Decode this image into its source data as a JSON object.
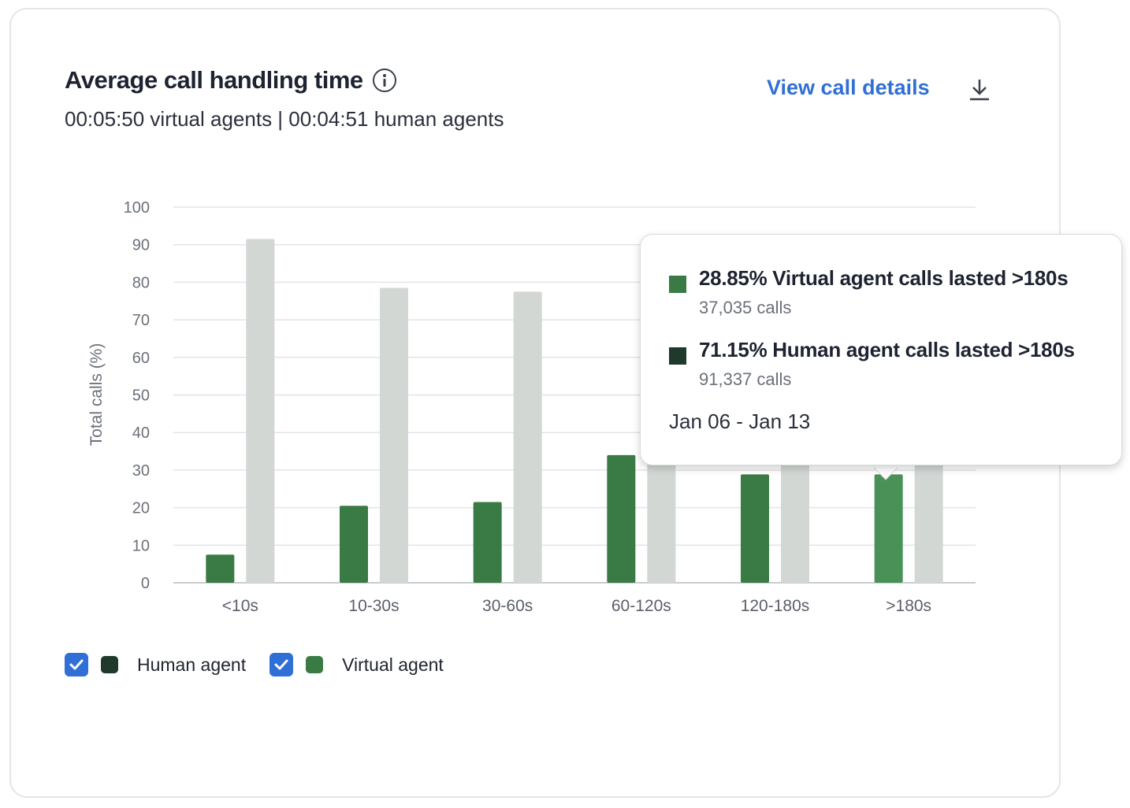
{
  "header": {
    "title": "Average call handling time",
    "subtitle": "00:05:50 virtual agents | 00:04:51 human agents",
    "view_details_label": "View call details"
  },
  "icons": {
    "info": "info-icon",
    "download": "download-icon",
    "checkbox": "checkmark-icon"
  },
  "colors": {
    "virtual": "#3a7b45",
    "virtual_highlight": "#4a9158",
    "human_bar": "#d3d7d4",
    "human_swatch": "#1f3a2a",
    "grid": "#e2e4e6",
    "link": "#2f6fd6"
  },
  "chart_data": {
    "type": "bar",
    "categories": [
      "<10s",
      "10-30s",
      "30-60s",
      "60-120s",
      "120-180s",
      ">180s"
    ],
    "series": [
      {
        "name": "Virtual agent",
        "values": [
          7.5,
          20.5,
          21.5,
          34,
          28.85,
          28.85
        ]
      },
      {
        "name": "Human agent",
        "values": [
          91.5,
          78.5,
          77.5,
          66,
          71.15,
          71.15
        ]
      }
    ],
    "ylabel": "Total calls (%)",
    "xlabel": "",
    "ylim": [
      0,
      100
    ],
    "yticks": [
      0,
      10,
      20,
      30,
      40,
      50,
      60,
      70,
      80,
      90,
      100
    ],
    "grid": true,
    "highlighted_category": ">180s"
  },
  "legend": {
    "items": [
      {
        "label": "Human agent",
        "checked": true
      },
      {
        "label": "Virtual agent",
        "checked": true
      }
    ]
  },
  "tooltip": {
    "virtual_headline": "28.85% Virtual agent calls lasted >180s",
    "virtual_calls": "37,035 calls",
    "human_headline": "71.15% Human agent calls lasted >180s",
    "human_calls": "91,337 calls",
    "date_range": "Jan 06 - Jan 13"
  }
}
